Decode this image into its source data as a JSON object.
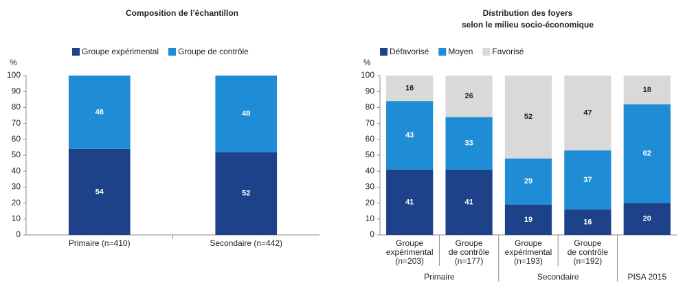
{
  "chart_data": [
    {
      "type": "stacked_bar",
      "title": [
        "Composition de l’échantillon"
      ],
      "y_label": "%",
      "categories": [
        [
          "Primaire (n=410)"
        ],
        [
          "Secondaire (n=442)"
        ]
      ],
      "series": [
        {
          "name": "Groupe expérimental",
          "color": "#1d428a",
          "values": [
            54,
            52
          ]
        },
        {
          "name": "Groupe de contrôle",
          "color": "#1f8dd6",
          "values": [
            46,
            48
          ]
        }
      ],
      "ylim": [
        0,
        100
      ],
      "yticks": [
        0,
        10,
        20,
        30,
        40,
        50,
        60,
        70,
        80,
        90,
        100
      ]
    },
    {
      "type": "stacked_bar",
      "title": [
        "Distribution des foyers",
        "selon le milieu socio-économique"
      ],
      "y_label": "%",
      "categories": [
        [
          "Groupe",
          "expérimental",
          "(n=203)"
        ],
        [
          "Groupe",
          "de contrôle",
          "(n=177)"
        ],
        [
          "Groupe",
          "expérimental",
          "(n=193)"
        ],
        [
          "Groupe",
          "de contrôle",
          "(n=192)"
        ],
        null
      ],
      "category_groups": [
        "Primaire",
        "Primaire",
        "Secondaire",
        "Secondaire",
        "PISA 2015"
      ],
      "series": [
        {
          "name": "Défavorisé",
          "color": "#1d428a",
          "values": [
            41,
            41,
            19,
            16,
            20
          ]
        },
        {
          "name": "Moyen",
          "color": "#1f8dd6",
          "values": [
            43,
            33,
            29,
            37,
            62
          ]
        },
        {
          "name": "Favorisé",
          "color": "#d9d9d9",
          "values": [
            16,
            26,
            52,
            47,
            18
          ]
        }
      ],
      "ylim": [
        0,
        100
      ],
      "yticks": [
        0,
        10,
        20,
        30,
        40,
        50,
        60,
        70,
        80,
        90,
        100
      ]
    }
  ]
}
